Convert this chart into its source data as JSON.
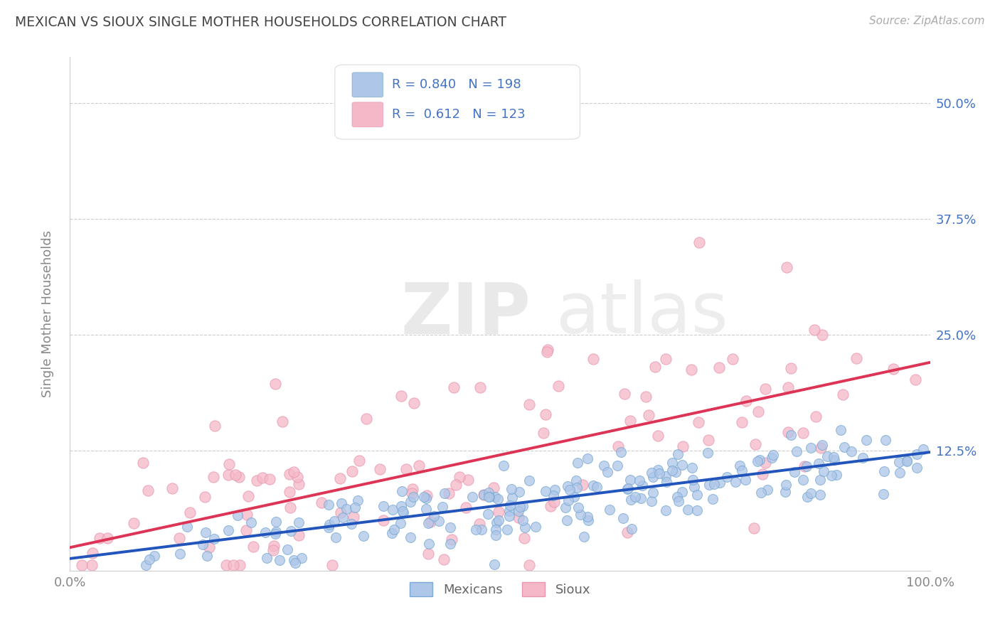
{
  "title": "MEXICAN VS SIOUX SINGLE MOTHER HOUSEHOLDS CORRELATION CHART",
  "source": "Source: ZipAtlas.com",
  "ylabel": "Single Mother Households",
  "blue_R": 0.84,
  "blue_N": 198,
  "pink_R": 0.612,
  "pink_N": 123,
  "blue_fill_color": "#aec6e8",
  "pink_fill_color": "#f5b8c8",
  "blue_edge_color": "#7aaad4",
  "pink_edge_color": "#e898b0",
  "blue_line_color": "#2255bb",
  "pink_line_color": "#dd3355",
  "watermark_zip": "ZIP",
  "watermark_atlas": "atlas",
  "legend_labels": [
    "Mexicans",
    "Sioux"
  ],
  "background_color": "#ffffff",
  "grid_color": "#cccccc",
  "title_color": "#444444",
  "legend_text_color": "#4472c4",
  "right_tick_color": "#4472c4",
  "blue_seed": 42,
  "pink_seed": 7,
  "slope_blue": 0.115,
  "intercept_blue": 0.008,
  "noise_blue": 0.018,
  "slope_pink": 0.2,
  "intercept_pink": 0.02,
  "noise_pink": 0.062
}
